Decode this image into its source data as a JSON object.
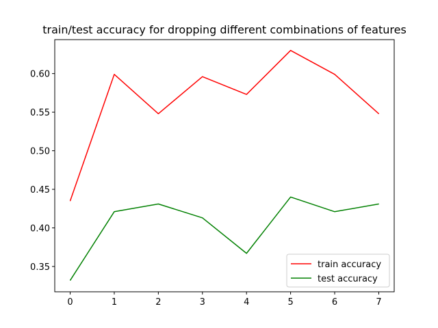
{
  "chart_data": {
    "type": "line",
    "title": "train/test accuracy for dropping different combinations of features",
    "xlabel": "",
    "ylabel": "",
    "x": [
      0,
      1,
      2,
      3,
      4,
      5,
      6,
      7
    ],
    "xticks": [
      "0",
      "1",
      "2",
      "3",
      "4",
      "5",
      "6",
      "7"
    ],
    "yticks": [
      "0.35",
      "0.40",
      "0.45",
      "0.50",
      "0.55",
      "0.60"
    ],
    "ytick_values": [
      0.35,
      0.4,
      0.45,
      0.5,
      0.55,
      0.6
    ],
    "xlim": [
      -0.35,
      7.35
    ],
    "ylim": [
      0.3172,
      0.644
    ],
    "grid": false,
    "legend_position": "lower-right",
    "series": [
      {
        "name": "train accuracy",
        "color": "#ff0000",
        "values": [
          0.435,
          0.599,
          0.548,
          0.596,
          0.573,
          0.63,
          0.599,
          0.548
        ]
      },
      {
        "name": "test accuracy",
        "color": "#008000",
        "values": [
          0.332,
          0.421,
          0.431,
          0.413,
          0.367,
          0.44,
          0.421,
          0.431
        ]
      }
    ]
  }
}
